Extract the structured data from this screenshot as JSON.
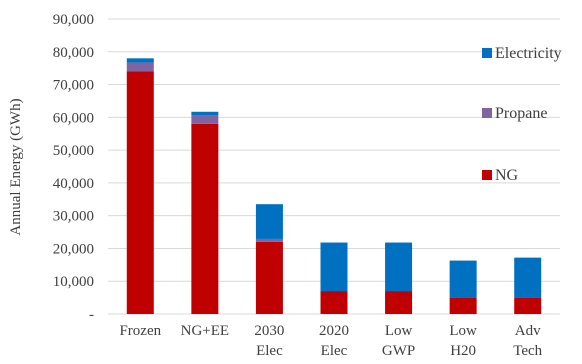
{
  "chart_data": {
    "type": "bar",
    "stacked": true,
    "categories": [
      "Frozen",
      "NG+EE",
      "2030 Elec",
      "2020 Elec",
      "Low GWP",
      "Low H20",
      "Adv Tech"
    ],
    "category_lines": [
      [
        "Frozen"
      ],
      [
        "NG+EE"
      ],
      [
        "2030",
        "Elec"
      ],
      [
        "2020",
        "Elec"
      ],
      [
        "Low",
        "GWP"
      ],
      [
        "Low",
        "H20"
      ],
      [
        "Adv",
        "Tech"
      ]
    ],
    "series": [
      {
        "name": "NG",
        "color": "#c00000",
        "values": [
          74000,
          58000,
          22000,
          7000,
          7000,
          5000,
          5000
        ]
      },
      {
        "name": "Propane",
        "color": "#8064a2",
        "values": [
          2700,
          2700,
          900,
          0,
          0,
          0,
          0
        ]
      },
      {
        "name": "Electricity",
        "color": "#0070c0",
        "values": [
          1300,
          1000,
          10600,
          14800,
          14800,
          11300,
          12200
        ]
      }
    ],
    "xlabel": "",
    "ylabel": "Annual Energy (GWh)",
    "ylim": [
      0,
      90000
    ],
    "yticks": [
      0,
      10000,
      20000,
      30000,
      40000,
      50000,
      60000,
      70000,
      80000,
      90000
    ],
    "ytick_labels": [
      "-",
      "10,000",
      "20,000",
      "30,000",
      "40,000",
      "50,000",
      "60,000",
      "70,000",
      "80,000",
      "90,000"
    ],
    "legend": {
      "position": "right",
      "order": [
        "Electricity",
        "Propane",
        "NG"
      ]
    },
    "grid": true,
    "grid_color": "#d9d9d9"
  }
}
